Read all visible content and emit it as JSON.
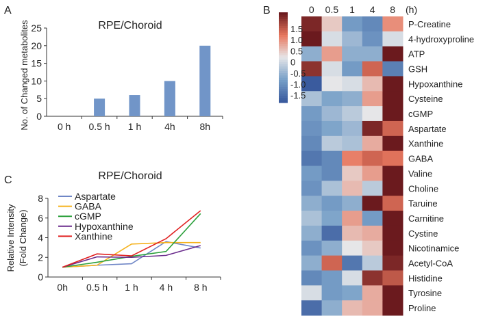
{
  "panel_labels": [
    "A",
    "B",
    "C"
  ],
  "chart_data": [
    {
      "type": "bar",
      "title": "RPE/Choroid",
      "categories": [
        "0 h",
        "0.5 h",
        "1 h",
        "4h",
        "8h"
      ],
      "values": [
        0,
        5,
        6,
        10,
        20
      ],
      "xlabel": "",
      "ylabel": "No. of Changed metabolites",
      "ylim": [
        0,
        25
      ],
      "yticks": [
        0,
        5,
        10,
        15,
        20,
        25
      ],
      "bar_color": "#7195c8"
    },
    {
      "type": "heatmap",
      "columns": [
        "0",
        "0.5",
        "1",
        "4",
        "8"
      ],
      "column_unit": "(h)",
      "rows": [
        "P-Creatine",
        "4-hydroxyproline",
        "ATP",
        "GSH",
        "Hypoxanthine",
        "Cysteine",
        "cGMP",
        "Aspartate",
        "Xanthine",
        "GABA",
        "Valine",
        "Choline",
        "Taruine",
        "Carnitine",
        "Cystine",
        "Nicotinamice",
        "Acetyl-CoA",
        "Histidine",
        "Tyrosine",
        "Proline"
      ],
      "values": [
        [
          1.4,
          0.2,
          -0.8,
          -1.0,
          0.6
        ],
        [
          1.7,
          -0.1,
          -0.5,
          -0.9,
          -0.1
        ],
        [
          -0.6,
          0.5,
          -0.6,
          -0.6,
          1.7
        ],
        [
          1.3,
          -0.1,
          -0.8,
          0.9,
          -1.1
        ],
        [
          -1.5,
          0.0,
          -0.1,
          0.3,
          1.5
        ],
        [
          -0.4,
          -0.7,
          -0.6,
          0.5,
          1.7
        ],
        [
          -0.8,
          -0.5,
          -0.3,
          0.0,
          1.8
        ],
        [
          -0.9,
          -0.7,
          -0.5,
          1.4,
          0.9
        ],
        [
          -1.0,
          -0.3,
          -0.4,
          0.4,
          1.8
        ],
        [
          -1.2,
          -1.0,
          0.7,
          0.9,
          0.8
        ],
        [
          -0.8,
          -1.0,
          0.2,
          0.5,
          1.5
        ],
        [
          -0.9,
          -0.4,
          0.3,
          -0.3,
          1.8
        ],
        [
          -0.6,
          -0.8,
          -0.6,
          1.5,
          0.9
        ],
        [
          -0.4,
          -0.7,
          0.5,
          -0.8,
          1.7
        ],
        [
          -0.6,
          -1.3,
          0.3,
          0.4,
          1.5
        ],
        [
          -0.9,
          -0.6,
          0.0,
          0.2,
          1.7
        ],
        [
          -0.6,
          0.9,
          -1.2,
          -0.3,
          1.4
        ],
        [
          -1.0,
          -0.8,
          -0.1,
          1.3,
          1.0
        ],
        [
          -0.1,
          -0.8,
          -0.7,
          0.4,
          1.7
        ],
        [
          -1.3,
          -0.6,
          0.3,
          0.4,
          1.5
        ]
      ],
      "colorbar_ticks": [
        "1.5",
        "1.0",
        "0.5",
        "0",
        "-0.5",
        "-1.0",
        "-1.5"
      ],
      "color_range": [
        -1.5,
        1.5
      ],
      "colors": {
        "low": "#3a5b9e",
        "mid": "#e6e6e8",
        "high": "#6b1a1e"
      }
    },
    {
      "type": "line",
      "title": "RPE/Choroid",
      "x": [
        "0h",
        "0.5 h",
        "1 h",
        "4 h",
        "8 h"
      ],
      "ylabel": [
        "Relative Intensity",
        "(Fold Change)"
      ],
      "ylim": [
        0,
        8
      ],
      "yticks": [
        0,
        2,
        4,
        6,
        8
      ],
      "legend": "top-left",
      "series": [
        {
          "name": "Aspartate",
          "color": "#6f86c6",
          "values": [
            1,
            1.2,
            1.35,
            3.6,
            2.95
          ]
        },
        {
          "name": "GABA",
          "color": "#f5b21d",
          "values": [
            1,
            1.2,
            3.35,
            3.5,
            3.5
          ]
        },
        {
          "name": "cGMP",
          "color": "#2ca03c",
          "values": [
            1,
            1.5,
            2.1,
            2.6,
            6.45
          ]
        },
        {
          "name": "Hypoxanthine",
          "color": "#6a2b8c",
          "values": [
            1,
            2.05,
            2.0,
            2.2,
            3.2
          ]
        },
        {
          "name": "Xanthine",
          "color": "#e02020",
          "values": [
            1,
            2.35,
            2.15,
            3.9,
            6.75
          ]
        }
      ]
    }
  ]
}
